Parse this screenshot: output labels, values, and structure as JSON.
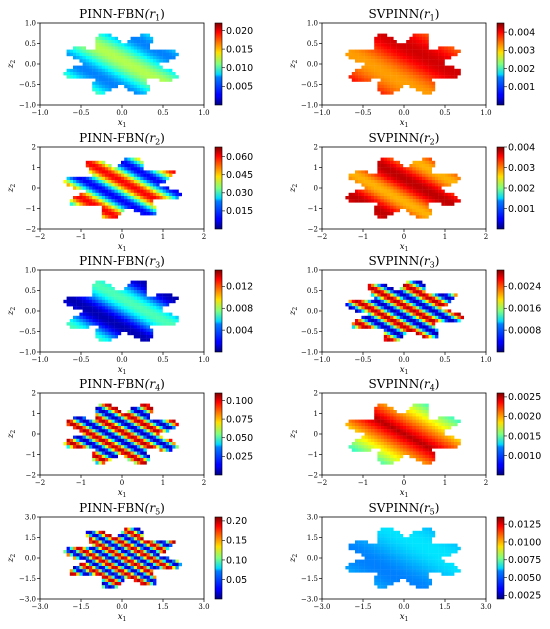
{
  "colormap": "jet",
  "chart_data": [
    {
      "type": "heatmap",
      "title_main": "PINN-FBN",
      "title_arg": "(r",
      "title_sub": "1",
      "title_close": ")",
      "xlabel": "x",
      "xlabel_sub": "1",
      "ylabel": "z",
      "ylabel_sub": "2",
      "xlim": [
        -1.0,
        1.0
      ],
      "ylim": [
        -1.0,
        1.0
      ],
      "xticks": [
        "−1.0",
        "−0.5",
        "0.0",
        "0.5",
        "1.0"
      ],
      "yticks": [
        "1.0",
        "0.5",
        "0.0",
        "−0.5",
        "−1.0"
      ],
      "colorbar_ticks": [
        "0.020",
        "0.015",
        "0.010",
        "0.005"
      ],
      "colorbar_range": [
        0.0,
        0.022
      ],
      "field": {
        "kind": "diag",
        "freq": 0.8,
        "phase": 1.2,
        "bias": 0.4,
        "amp": 0.15
      }
    },
    {
      "type": "heatmap",
      "title_main": "SVPINN",
      "title_arg": "(r",
      "title_sub": "1",
      "title_close": ")",
      "xlabel": "x",
      "xlabel_sub": "1",
      "ylabel": "z",
      "ylabel_sub": "2",
      "xlim": [
        -1.0,
        1.0
      ],
      "ylim": [
        -1.0,
        1.0
      ],
      "xticks": [
        "−1.0",
        "−0.5",
        "0.0",
        "0.5",
        "1.0"
      ],
      "yticks": [
        "1.0",
        "0.5",
        "0.0",
        "−0.5",
        "−1.0"
      ],
      "colorbar_ticks": [
        "0.004",
        "0.003",
        "0.002",
        "0.001"
      ],
      "colorbar_range": [
        0.0,
        0.0045
      ],
      "field": {
        "kind": "diag",
        "freq": 0.6,
        "phase": 0.0,
        "bias": 0.82,
        "amp": 0.1
      }
    },
    {
      "type": "heatmap",
      "title_main": "PINN-FBN",
      "title_arg": "(r",
      "title_sub": "2",
      "title_close": ")",
      "xlabel": "x",
      "xlabel_sub": "1",
      "ylabel": "z",
      "ylabel_sub": "2",
      "xlim": [
        -2,
        2
      ],
      "ylim": [
        -2,
        2
      ],
      "xticks": [
        "−2",
        "−1",
        "0",
        "1",
        "2"
      ],
      "yticks": [
        "2",
        "1",
        "0",
        "−1",
        "−2"
      ],
      "colorbar_ticks": [
        "0.060",
        "0.045",
        "0.030",
        "0.015"
      ],
      "colorbar_range": [
        0.0,
        0.068
      ],
      "field": {
        "kind": "diag",
        "freq": 1.2,
        "phase": 0.5,
        "bias": 0.5,
        "amp": 0.38
      }
    },
    {
      "type": "heatmap",
      "title_main": "SVPINN",
      "title_arg": "(r",
      "title_sub": "2",
      "title_close": ")",
      "xlabel": "x",
      "xlabel_sub": "1",
      "ylabel": "z",
      "ylabel_sub": "2",
      "xlim": [
        -2,
        2
      ],
      "ylim": [
        -2,
        2
      ],
      "xticks": [
        "−2",
        "−1",
        "0",
        "1",
        "2"
      ],
      "yticks": [
        "2",
        "1",
        "0",
        "−1",
        "−2"
      ],
      "colorbar_ticks": [
        "0.004",
        "0.003",
        "0.002",
        "0.001"
      ],
      "colorbar_range": [
        0.0,
        0.004
      ],
      "field": {
        "kind": "diag",
        "freq": 1.0,
        "phase": 0.3,
        "bias": 0.82,
        "amp": 0.12
      }
    },
    {
      "type": "heatmap",
      "title_main": "PINN-FBN",
      "title_arg": "(r",
      "title_sub": "3",
      "title_close": ")",
      "xlabel": "x",
      "xlabel_sub": "1",
      "ylabel": "z",
      "ylabel_sub": "2",
      "xlim": [
        -1.0,
        1.0
      ],
      "ylim": [
        -1.0,
        1.0
      ],
      "xticks": [
        "−1.0",
        "−0.5",
        "0.0",
        "0.5",
        "1.0"
      ],
      "yticks": [
        "1.0",
        "0.5",
        "0.0",
        "−0.5",
        "−1.0"
      ],
      "colorbar_ticks": [
        "0.012",
        "0.008",
        "0.004"
      ],
      "colorbar_range": [
        0.0,
        0.015
      ],
      "field": {
        "kind": "diag",
        "freq": 0.8,
        "phase": 0.2,
        "bias": 0.25,
        "amp": 0.2
      }
    },
    {
      "type": "heatmap",
      "title_main": "SVPINN",
      "title_arg": "(r",
      "title_sub": "3",
      "title_close": ")",
      "xlabel": "x",
      "xlabel_sub": "1",
      "ylabel": "z",
      "ylabel_sub": "2",
      "xlim": [
        -1.0,
        1.0
      ],
      "ylim": [
        -1.0,
        1.0
      ],
      "xticks": [
        "−1.0",
        "−0.5",
        "0.0",
        "0.5",
        "1.0"
      ],
      "yticks": [
        "1.0",
        "0.5",
        "0.0",
        "−0.5",
        "−1.0"
      ],
      "colorbar_ticks": [
        "0.0024",
        "0.0016",
        "0.0008"
      ],
      "colorbar_range": [
        0.0,
        0.003
      ],
      "field": {
        "kind": "diag",
        "freq": 2.2,
        "phase": 0.0,
        "bias": 0.5,
        "amp": 0.45
      }
    },
    {
      "type": "heatmap",
      "title_main": "PINN-FBN",
      "title_arg": "(r",
      "title_sub": "4",
      "title_close": ")",
      "xlabel": "x",
      "xlabel_sub": "1",
      "ylabel": "z",
      "ylabel_sub": "2",
      "xlim": [
        -2,
        2
      ],
      "ylim": [
        -2,
        2
      ],
      "xticks": [
        "−2",
        "−1",
        "0",
        "1",
        "2"
      ],
      "yticks": [
        "2",
        "1",
        "0",
        "−1",
        "−2"
      ],
      "colorbar_ticks": [
        "0.100",
        "0.075",
        "0.050",
        "0.025"
      ],
      "colorbar_range": [
        0.0,
        0.11
      ],
      "field": {
        "kind": "diag",
        "freq": 2.4,
        "phase": 0.8,
        "bias": 0.5,
        "amp": 0.45
      }
    },
    {
      "type": "heatmap",
      "title_main": "SVPINN",
      "title_arg": "(r",
      "title_sub": "4",
      "title_close": ")",
      "xlabel": "x",
      "xlabel_sub": "1",
      "ylabel": "z",
      "ylabel_sub": "2",
      "xlim": [
        -2,
        2
      ],
      "ylim": [
        -2,
        2
      ],
      "xticks": [
        "−2",
        "−1",
        "0",
        "1",
        "2"
      ],
      "yticks": [
        "2",
        "1",
        "0",
        "−1",
        "−2"
      ],
      "colorbar_ticks": [
        "0.0025",
        "0.0020",
        "0.0015",
        "0.0010"
      ],
      "colorbar_range": [
        0.0005,
        0.0026
      ],
      "field": {
        "kind": "band",
        "width": 0.9,
        "bias": 0.95,
        "amp": 0.6
      }
    },
    {
      "type": "heatmap",
      "title_main": "PINN-FBN",
      "title_arg": "(r",
      "title_sub": "5",
      "title_close": ")",
      "xlabel": "x",
      "xlabel_sub": "1",
      "ylabel": "z",
      "ylabel_sub": "2",
      "xlim": [
        -3.0,
        3.0
      ],
      "ylim": [
        -3.0,
        3.0
      ],
      "xticks": [
        "−3.0",
        "−1.5",
        "0.0",
        "1.5",
        "3.0"
      ],
      "yticks": [
        "3.0",
        "1.5",
        "0.0",
        "−1.5",
        "−3.0"
      ],
      "colorbar_ticks": [
        "0.20",
        "0.15",
        "0.10",
        "0.05"
      ],
      "colorbar_range": [
        0.0,
        0.21
      ],
      "field": {
        "kind": "diag",
        "freq": 3.2,
        "phase": 1.2,
        "bias": 0.5,
        "amp": 0.45
      }
    },
    {
      "type": "heatmap",
      "title_main": "SVPINN",
      "title_arg": "(r",
      "title_sub": "5",
      "title_close": ")",
      "xlabel": "x",
      "xlabel_sub": "1",
      "ylabel": "z",
      "ylabel_sub": "2",
      "xlim": [
        -3.0,
        3.0
      ],
      "ylim": [
        -3.0,
        3.0
      ],
      "xticks": [
        "−3.0",
        "−1.5",
        "0.0",
        "1.5",
        "3.0"
      ],
      "yticks": [
        "3.0",
        "1.5",
        "0.0",
        "−1.5",
        "−3.0"
      ],
      "colorbar_ticks": [
        "0.0125",
        "0.0100",
        "0.0075",
        "0.0050",
        "0.0025"
      ],
      "colorbar_range": [
        0.002,
        0.0135
      ],
      "field": {
        "kind": "diag",
        "freq": 0.5,
        "phase": 0.0,
        "bias": 0.3,
        "amp": 0.05
      }
    }
  ]
}
